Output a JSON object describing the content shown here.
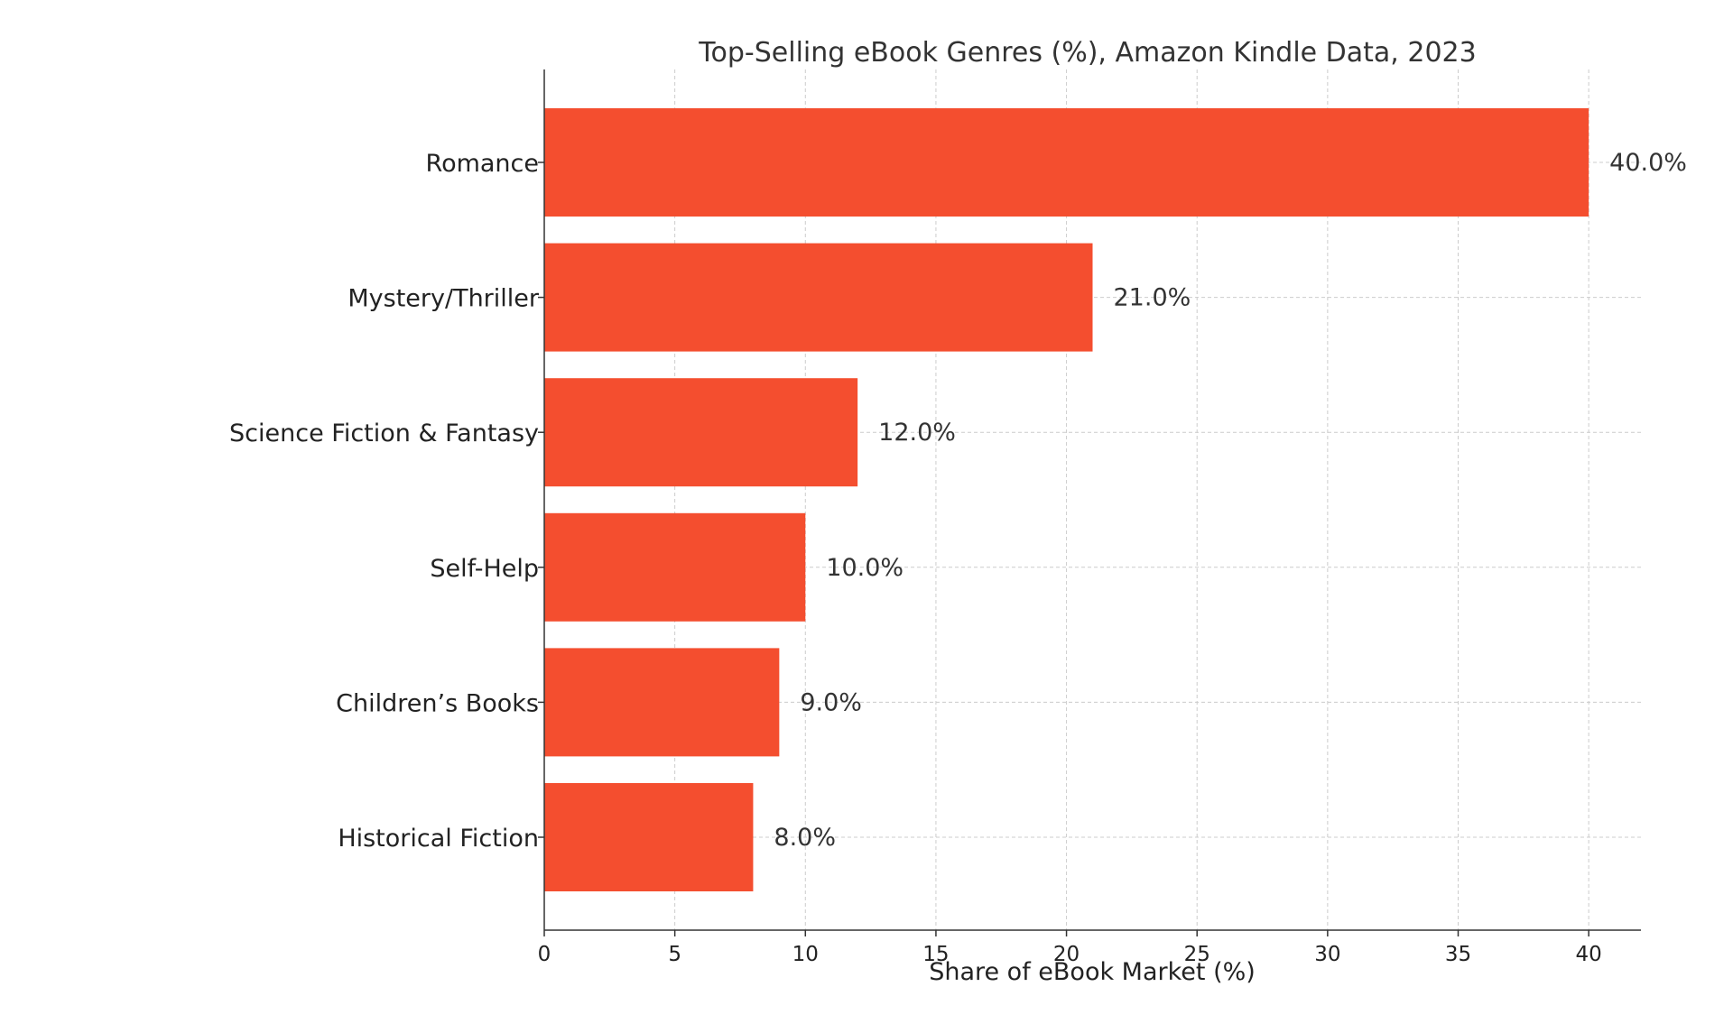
{
  "chart_data": {
    "type": "bar",
    "orientation": "horizontal",
    "title": "Top-Selling eBook Genres (%), Amazon Kindle Data, 2023",
    "xlabel": "Share of eBook Market (%)",
    "ylabel": "",
    "categories": [
      "Romance",
      "Mystery/Thriller",
      "Science Fiction & Fantasy",
      "Self-Help",
      "Children’s Books",
      "Historical Fiction"
    ],
    "values": [
      40,
      21,
      12,
      10,
      9,
      8
    ],
    "data_labels": [
      "40.0%",
      "21.0%",
      "12.0%",
      "10.0%",
      "9.0%",
      "8.0%"
    ],
    "xlim": [
      0,
      42
    ],
    "xticks": [
      0,
      5,
      10,
      15,
      20,
      25,
      30,
      35,
      40
    ],
    "grid": true,
    "legend": "none",
    "bar_color": "#f44e2f"
  }
}
